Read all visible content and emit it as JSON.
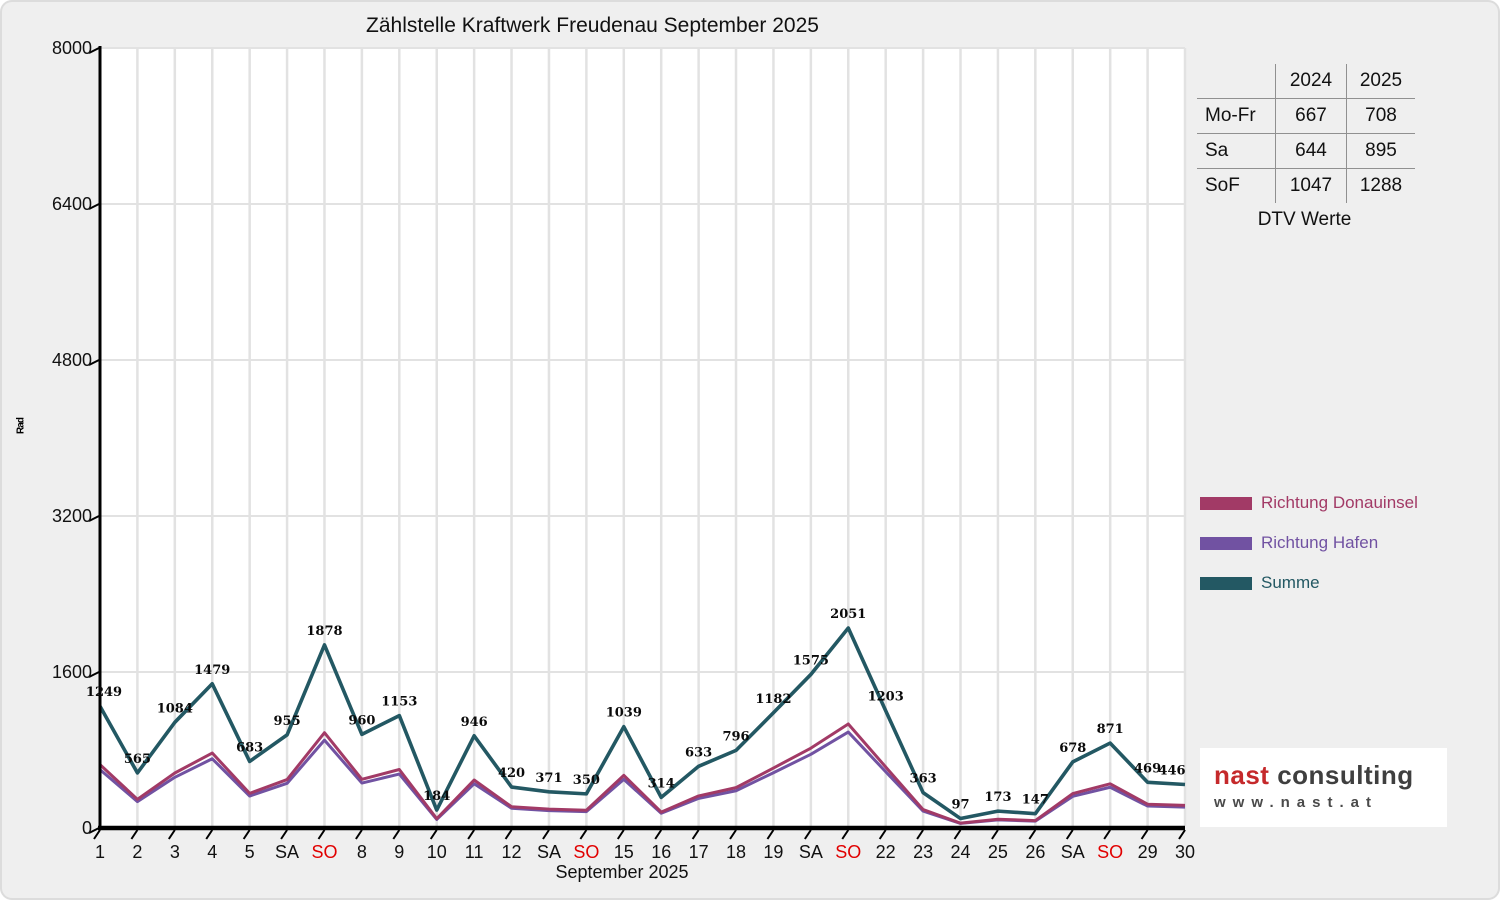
{
  "title": "Zählstelle Kraftwerk Freudenau September 2025",
  "y_axis": {
    "unit_label": "Rad",
    "ticks": [
      0,
      1600,
      3200,
      4800,
      6400,
      8000
    ],
    "max": 8000
  },
  "x_axis": {
    "title": "September 2025",
    "labels": [
      "1",
      "2",
      "3",
      "4",
      "5",
      "SA",
      "SO",
      "8",
      "9",
      "10",
      "11",
      "12",
      "SA",
      "SO",
      "15",
      "16",
      "17",
      "18",
      "19",
      "SA",
      "SO",
      "22",
      "23",
      "24",
      "25",
      "26",
      "SA",
      "SO",
      "29",
      "30"
    ]
  },
  "chart_data": {
    "type": "line",
    "x": [
      1,
      2,
      3,
      4,
      5,
      6,
      7,
      8,
      9,
      10,
      11,
      12,
      13,
      14,
      15,
      16,
      17,
      18,
      19,
      20,
      21,
      22,
      23,
      24,
      25,
      26,
      27,
      28,
      29,
      30
    ],
    "categories": [
      "1",
      "2",
      "3",
      "4",
      "5",
      "SA",
      "SO",
      "8",
      "9",
      "10",
      "11",
      "12",
      "SA",
      "SO",
      "15",
      "16",
      "17",
      "18",
      "19",
      "SA",
      "SO",
      "22",
      "23",
      "24",
      "25",
      "26",
      "SA",
      "SO",
      "29",
      "30"
    ],
    "title": "Zählstelle Kraftwerk Freudenau September 2025",
    "xlabel": "September 2025",
    "ylabel": "Rad",
    "ylim": [
      0,
      8000
    ],
    "grid": true,
    "legend_position": "right",
    "series": [
      {
        "name": "Richtung Donauinsel",
        "color": "#a23a66",
        "show_point_labels": false,
        "values": [
          650,
          294,
          564,
          769,
          355,
          497,
          977,
          499,
          600,
          96,
          492,
          218,
          193,
          182,
          540,
          163,
          329,
          414,
          615,
          819,
          1067,
          626,
          189,
          50,
          90,
          76,
          353,
          453,
          244,
          232
        ]
      },
      {
        "name": "Richtung Hafen",
        "color": "#7152a2",
        "show_point_labels": false,
        "values": [
          599,
          271,
          520,
          710,
          328,
          458,
          901,
          461,
          553,
          88,
          454,
          202,
          178,
          168,
          499,
          151,
          304,
          382,
          567,
          756,
          984,
          577,
          174,
          47,
          83,
          71,
          325,
          418,
          225,
          214
        ]
      },
      {
        "name": "Summe",
        "color": "#235863",
        "show_point_labels": true,
        "values": [
          1249,
          565,
          1084,
          1479,
          683,
          955,
          1878,
          960,
          1153,
          184,
          946,
          420,
          371,
          350,
          1039,
          314,
          633,
          796,
          1182,
          1575,
          2051,
          1203,
          363,
          97,
          173,
          147,
          678,
          871,
          469,
          446
        ]
      }
    ]
  },
  "stats_table": {
    "col_headers": [
      "",
      "2024",
      "2025"
    ],
    "rows": [
      [
        "Mo-Fr",
        "667",
        "708"
      ],
      [
        "Sa",
        "644",
        "895"
      ],
      [
        "SoF",
        "1047",
        "1288"
      ]
    ],
    "caption": "DTV Werte"
  },
  "legend": {
    "items": [
      {
        "label": "Richtung Donauinsel",
        "color": "#a23a66"
      },
      {
        "label": "Richtung Hafen",
        "color": "#7152a2"
      },
      {
        "label": "Summe",
        "color": "#235863"
      }
    ]
  },
  "logo": {
    "brand": "nast",
    "suffix": "consulting",
    "url": "www.nast.at"
  },
  "colors": {
    "sunday_red": "#e10000",
    "axis": "#000000",
    "grid": "#e2e2e2",
    "plot_bg": "#ffffff",
    "page_bg": "#efefef"
  }
}
